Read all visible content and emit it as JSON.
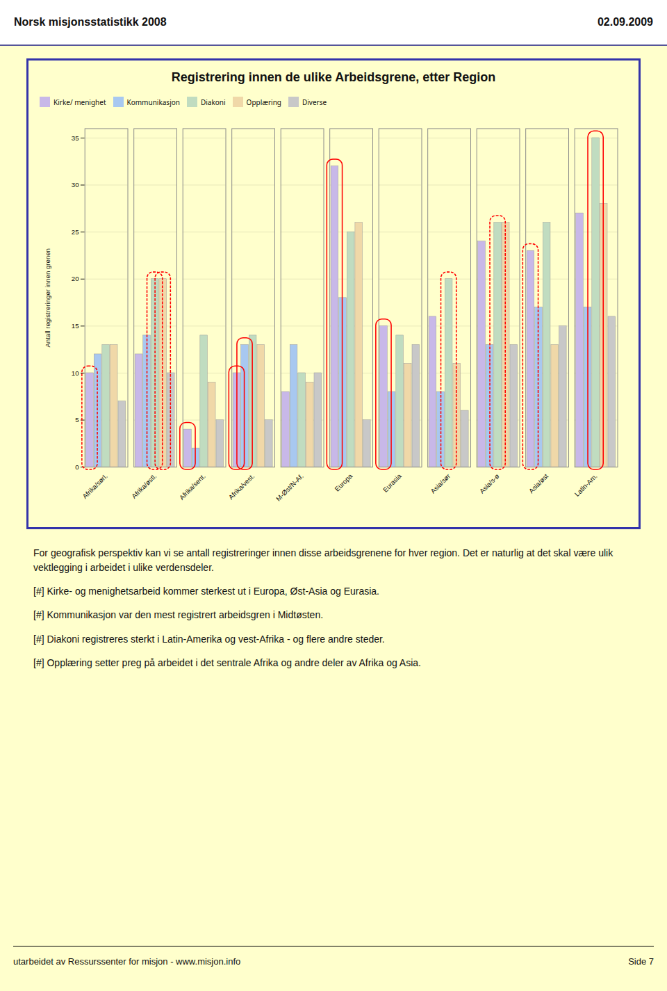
{
  "header": [
    "Norsk misjonsstatistikk 2008",
    "02.09.2009"
  ],
  "chart_data": {
    "type": "bar",
    "title": "Registrering innen de ulike Arbeidsgrene, etter Region",
    "ylabel": "Antall registreringer innen grenen",
    "categories": [
      "Afrika/sørl.",
      "Afrika/østl.",
      "Afrika/sent.",
      "Afrika/vest.",
      "M-Øst/N-Af.",
      "Europa",
      "Eurasia",
      "Asia/sør",
      "Asia/s-ø",
      "Asia/øst",
      "Latin-Am."
    ],
    "series": [
      {
        "name": "Kirke/ menighet",
        "color": "#C8B8E8",
        "values": [
          10,
          12,
          4,
          10,
          8,
          32,
          15,
          16,
          24,
          23,
          27
        ]
      },
      {
        "name": "Kommunikasjon",
        "color": "#A8C8F0",
        "values": [
          12,
          14,
          2,
          13,
          13,
          18,
          8,
          8,
          13,
          17,
          17
        ]
      },
      {
        "name": "Diakoni",
        "color": "#C0DCC0",
        "values": [
          13,
          20,
          14,
          14,
          10,
          25,
          14,
          20,
          26,
          26,
          35
        ]
      },
      {
        "name": "Opplæring",
        "color": "#F0D8A8",
        "values": [
          13,
          20,
          9,
          13,
          9,
          26,
          11,
          11,
          26,
          13,
          28
        ]
      },
      {
        "name": "Diverse",
        "color": "#C8C8C8",
        "values": [
          7,
          10,
          5,
          5,
          10,
          5,
          13,
          6,
          13,
          15,
          16
        ]
      }
    ],
    "ylim": [
      0,
      36
    ],
    "yticks": [
      0,
      5,
      10,
      15,
      20,
      25,
      30,
      35
    ],
    "grid": true,
    "legend": "upper left",
    "annotations": [
      {
        "category": "Afrika/sørl.",
        "series": "Kirke/ menighet",
        "line_style": "dashed",
        "color": "red"
      },
      {
        "category": "Afrika/østl.",
        "series": "Diakoni",
        "line_style": "dashed",
        "color": "red"
      },
      {
        "category": "Afrika/østl.",
        "series": "Opplæring",
        "line_style": "dashed",
        "color": "red"
      },
      {
        "category": "Afrika/sent.",
        "series": "Kirke/ menighet",
        "line_style": "solid",
        "color": "red"
      },
      {
        "category": "Afrika/vest.",
        "series": "Kirke/ menighet",
        "line_style": "solid",
        "color": "red"
      },
      {
        "category": "Afrika/vest.",
        "series": "Kommunikasjon",
        "line_style": "solid",
        "color": "red"
      },
      {
        "category": "Europa",
        "series": "Kirke/ menighet",
        "line_style": "solid",
        "color": "red"
      },
      {
        "category": "Eurasia",
        "series": "Kirke/ menighet",
        "line_style": "solid",
        "color": "red"
      },
      {
        "category": "Asia/sør",
        "series": "Diakoni",
        "line_style": "dashed",
        "color": "red"
      },
      {
        "category": "Asia/s-ø",
        "series": "Diakoni",
        "line_style": "dashed",
        "color": "red"
      },
      {
        "category": "Asia/øst",
        "series": "Kirke/ menighet",
        "line_style": "dashed",
        "color": "red"
      },
      {
        "category": "Latin-Am.",
        "series": "Diakoni",
        "line_style": "solid",
        "color": "red"
      }
    ]
  },
  "body_text": [
    "For geografisk perspektiv kan vi se antall registreringer innen disse arbeidsgrenene for hver region. Det er naturlig at det skal være ulik vektlegging i arbeidet i ulike verdensdeler.",
    "[#] Kirke- og menighetsarbeid kommer sterkest ut i Europa, Øst-Asia og Eurasia.",
    "[#] Kommunikasjon var den mest registrert arbeidsgren i Midtøsten.",
    "[#] Diakoni registreres sterkt i Latin-Amerika og vest-Afrika - og flere andre steder.",
    "[#] Opplæring setter preg på arbeidet i det sentrale Afrika og andre deler av Afrika og Asia."
  ],
  "footer": [
    "utarbeidet av Ressurssenter for misjon - www.misjon.info",
    "Side 7"
  ]
}
